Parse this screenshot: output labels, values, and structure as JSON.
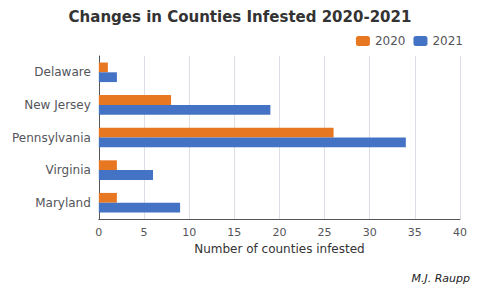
{
  "chart_data": {
    "type": "bar",
    "orientation": "horizontal",
    "title": "Changes in Counties Infested 2020-2021",
    "categories": [
      "Delaware",
      "New Jersey",
      "Pennsylvania",
      "Virginia",
      "Maryland"
    ],
    "series": [
      {
        "name": "2020",
        "color": "#E87722",
        "values": [
          1,
          8,
          26,
          2,
          2
        ]
      },
      {
        "name": "2021",
        "color": "#4472C4",
        "values": [
          2,
          19,
          34,
          6,
          9
        ]
      }
    ],
    "xlabel": "Number of counties infested",
    "xlim": [
      0,
      40
    ],
    "xticks": [
      0,
      5,
      10,
      15,
      20,
      25,
      30,
      35,
      40
    ],
    "grid": true,
    "legend": "upper right",
    "annotations": [
      "M.J. Raupp"
    ]
  }
}
